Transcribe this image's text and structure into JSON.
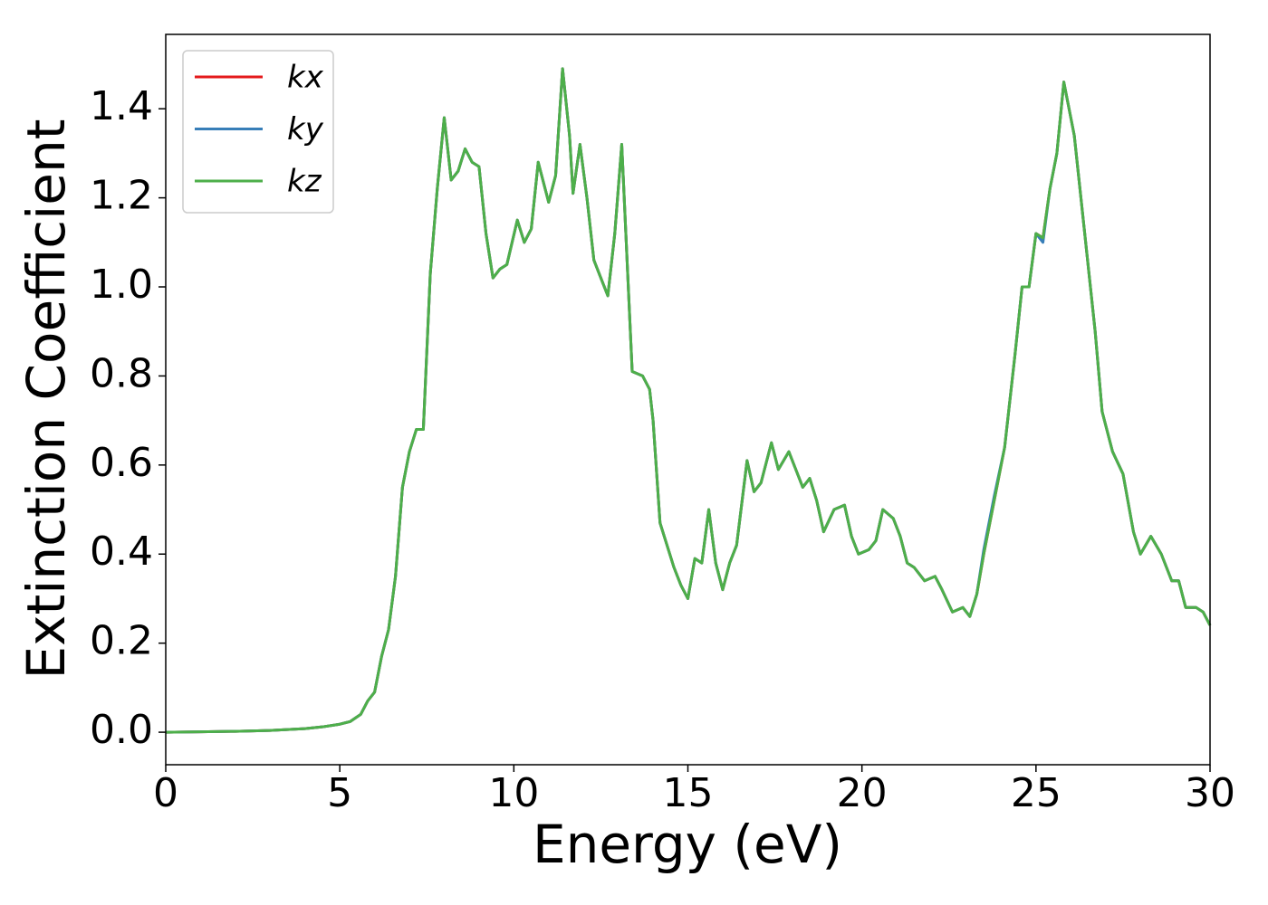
{
  "chart_data": {
    "type": "line",
    "xlabel": "Energy (eV)",
    "ylabel": "Extinction Coefficient",
    "xlim": [
      0,
      30
    ],
    "ylim": [
      -0.073,
      1.567
    ],
    "xticks": [
      0,
      5,
      10,
      15,
      20,
      25,
      30
    ],
    "yticks": [
      {
        "value": 0,
        "label": "0.0"
      },
      {
        "value": 0.2,
        "label": "0.2"
      },
      {
        "value": 0.4,
        "label": "0.4"
      },
      {
        "value": 0.6,
        "label": "0.6"
      },
      {
        "value": 0.8,
        "label": "0.8"
      },
      {
        "value": 1,
        "label": "1.0"
      },
      {
        "value": 1.2,
        "label": "1.2"
      },
      {
        "value": 1.4,
        "label": "1.4"
      }
    ],
    "legend": "upper left",
    "x": [
      0,
      1,
      2,
      3,
      4,
      4.5,
      5,
      5.3,
      5.6,
      5.8,
      6.0,
      6.2,
      6.4,
      6.6,
      6.8,
      7.0,
      7.2,
      7.4,
      7.6,
      7.8,
      8.0,
      8.2,
      8.4,
      8.6,
      8.8,
      9.0,
      9.2,
      9.4,
      9.6,
      9.8,
      10.1,
      10.3,
      10.5,
      10.7,
      11.0,
      11.2,
      11.4,
      11.6,
      11.7,
      11.9,
      12.1,
      12.3,
      12.5,
      12.7,
      12.9,
      13.1,
      13.3,
      13.4,
      13.7,
      13.9,
      14.0,
      14.2,
      14.4,
      14.6,
      14.8,
      15.0,
      15.2,
      15.4,
      15.6,
      15.8,
      16.0,
      16.2,
      16.4,
      16.7,
      16.9,
      17.1,
      17.4,
      17.6,
      17.9,
      18.1,
      18.3,
      18.5,
      18.7,
      18.9,
      19.2,
      19.5,
      19.7,
      19.9,
      20.2,
      20.4,
      20.6,
      20.9,
      21.1,
      21.3,
      21.5,
      21.8,
      22.1,
      22.3,
      22.6,
      22.9,
      23.1,
      23.3,
      23.5,
      23.8,
      24.1,
      24.4,
      24.6,
      24.8,
      25.0,
      25.2,
      25.4,
      25.6,
      25.8,
      26.1,
      26.4,
      26.7,
      26.9,
      27.2,
      27.5,
      27.8,
      28.0,
      28.3,
      28.6,
      28.9,
      29.1,
      29.3,
      29.6,
      29.8,
      30.0
    ],
    "series": [
      {
        "name": "kx",
        "color": "#e41a1c",
        "values": [
          0,
          0.001,
          0.002,
          0.004,
          0.008,
          0.012,
          0.018,
          0.024,
          0.04,
          0.07,
          0.09,
          0.17,
          0.23,
          0.35,
          0.55,
          0.63,
          0.68,
          0.68,
          1.03,
          1.22,
          1.38,
          1.24,
          1.26,
          1.31,
          1.28,
          1.27,
          1.12,
          1.02,
          1.04,
          1.05,
          1.15,
          1.1,
          1.13,
          1.28,
          1.19,
          1.25,
          1.49,
          1.34,
          1.21,
          1.32,
          1.2,
          1.06,
          1.02,
          0.98,
          1.12,
          1.32,
          0.98,
          0.81,
          0.8,
          0.77,
          0.7,
          0.47,
          0.42,
          0.37,
          0.33,
          0.3,
          0.39,
          0.38,
          0.5,
          0.38,
          0.32,
          0.38,
          0.42,
          0.61,
          0.54,
          0.56,
          0.65,
          0.59,
          0.63,
          0.59,
          0.55,
          0.57,
          0.52,
          0.45,
          0.5,
          0.51,
          0.44,
          0.4,
          0.41,
          0.43,
          0.5,
          0.48,
          0.44,
          0.38,
          0.37,
          0.34,
          0.35,
          0.32,
          0.27,
          0.28,
          0.26,
          0.31,
          0.4,
          0.52,
          0.64,
          0.85,
          1.0,
          1.0,
          1.12,
          1.11,
          1.22,
          1.3,
          1.46,
          1.34,
          1.12,
          0.9,
          0.72,
          0.63,
          0.58,
          0.45,
          0.4,
          0.44,
          0.4,
          0.34,
          0.34,
          0.28,
          0.28,
          0.27,
          0.24
        ]
      },
      {
        "name": "ky",
        "color": "#377eb8",
        "values": [
          0,
          0.001,
          0.002,
          0.004,
          0.008,
          0.012,
          0.018,
          0.024,
          0.04,
          0.07,
          0.09,
          0.17,
          0.23,
          0.35,
          0.55,
          0.63,
          0.68,
          0.68,
          1.03,
          1.22,
          1.38,
          1.24,
          1.26,
          1.31,
          1.28,
          1.27,
          1.12,
          1.02,
          1.04,
          1.05,
          1.15,
          1.1,
          1.13,
          1.28,
          1.19,
          1.25,
          1.49,
          1.34,
          1.21,
          1.32,
          1.2,
          1.06,
          1.02,
          0.98,
          1.12,
          1.32,
          0.98,
          0.81,
          0.8,
          0.77,
          0.7,
          0.47,
          0.42,
          0.37,
          0.33,
          0.3,
          0.39,
          0.38,
          0.5,
          0.38,
          0.32,
          0.38,
          0.42,
          0.61,
          0.54,
          0.56,
          0.65,
          0.59,
          0.63,
          0.59,
          0.55,
          0.57,
          0.52,
          0.45,
          0.5,
          0.51,
          0.44,
          0.4,
          0.41,
          0.43,
          0.5,
          0.48,
          0.44,
          0.38,
          0.37,
          0.34,
          0.35,
          0.32,
          0.27,
          0.28,
          0.26,
          0.31,
          0.41,
          0.53,
          0.64,
          0.85,
          1.0,
          1.0,
          1.12,
          1.1,
          1.22,
          1.3,
          1.46,
          1.34,
          1.12,
          0.9,
          0.72,
          0.63,
          0.58,
          0.45,
          0.4,
          0.44,
          0.4,
          0.34,
          0.34,
          0.28,
          0.28,
          0.27,
          0.24
        ]
      },
      {
        "name": "kz",
        "color": "#4daf4a",
        "values": [
          0,
          0.001,
          0.002,
          0.004,
          0.008,
          0.012,
          0.018,
          0.024,
          0.04,
          0.07,
          0.09,
          0.17,
          0.23,
          0.35,
          0.55,
          0.63,
          0.68,
          0.68,
          1.03,
          1.22,
          1.38,
          1.24,
          1.26,
          1.31,
          1.28,
          1.27,
          1.12,
          1.02,
          1.04,
          1.05,
          1.15,
          1.1,
          1.13,
          1.28,
          1.19,
          1.25,
          1.49,
          1.34,
          1.21,
          1.32,
          1.2,
          1.06,
          1.02,
          0.98,
          1.12,
          1.32,
          0.98,
          0.81,
          0.8,
          0.77,
          0.7,
          0.47,
          0.42,
          0.37,
          0.33,
          0.3,
          0.39,
          0.38,
          0.5,
          0.38,
          0.32,
          0.38,
          0.42,
          0.61,
          0.54,
          0.56,
          0.65,
          0.59,
          0.63,
          0.59,
          0.55,
          0.57,
          0.52,
          0.45,
          0.5,
          0.51,
          0.44,
          0.4,
          0.41,
          0.43,
          0.5,
          0.48,
          0.44,
          0.38,
          0.37,
          0.34,
          0.35,
          0.32,
          0.27,
          0.28,
          0.26,
          0.31,
          0.4,
          0.52,
          0.64,
          0.85,
          1.0,
          1.0,
          1.12,
          1.11,
          1.22,
          1.3,
          1.46,
          1.34,
          1.12,
          0.9,
          0.72,
          0.63,
          0.58,
          0.45,
          0.4,
          0.44,
          0.4,
          0.34,
          0.34,
          0.28,
          0.28,
          0.27,
          0.24
        ]
      }
    ]
  }
}
